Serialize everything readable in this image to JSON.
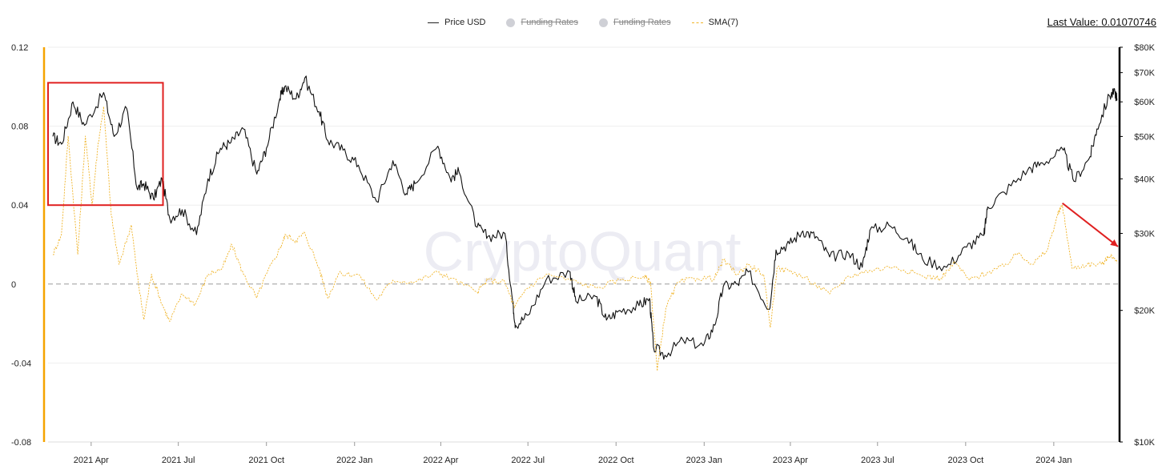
{
  "legend": {
    "items": [
      {
        "label": "Price USD",
        "style": "line",
        "color": "#222222",
        "enabled": true
      },
      {
        "label": "Funding Rates",
        "style": "dot",
        "color": "#cfd0d6",
        "enabled": false
      },
      {
        "label": "Funding Rates",
        "style": "dot",
        "color": "#cfd0d6",
        "enabled": false
      },
      {
        "label": "SMA(7)",
        "style": "dash",
        "color": "#f0b429",
        "enabled": true
      }
    ]
  },
  "last_value": {
    "label": "Last Value:",
    "value": "0.01070746"
  },
  "watermark": "CryptoQuant",
  "chart_data": {
    "type": "line",
    "x_range": [
      "2021-02-15",
      "2024-03-08"
    ],
    "x_ticks": [
      {
        "date": "2021-04-01",
        "label": "2021 Apr"
      },
      {
        "date": "2021-07-01",
        "label": "2021 Jul"
      },
      {
        "date": "2021-10-01",
        "label": "2021 Oct"
      },
      {
        "date": "2022-01-01",
        "label": "2022 Jan"
      },
      {
        "date": "2022-04-01",
        "label": "2022 Apr"
      },
      {
        "date": "2022-07-01",
        "label": "2022 Jul"
      },
      {
        "date": "2022-10-01",
        "label": "2022 Oct"
      },
      {
        "date": "2023-01-01",
        "label": "2023 Jan"
      },
      {
        "date": "2023-04-01",
        "label": "2023 Apr"
      },
      {
        "date": "2023-07-01",
        "label": "2023 Jul"
      },
      {
        "date": "2023-10-01",
        "label": "2023 Oct"
      },
      {
        "date": "2024-01-01",
        "label": "2024 Jan"
      }
    ],
    "y_left": {
      "range": [
        -0.08,
        0.12
      ],
      "ticks": [
        0.12,
        0.08,
        0.04,
        0,
        -0.04,
        -0.08
      ],
      "labels": [
        "0.12",
        "0.08",
        "0.04",
        "0",
        "-0.04",
        "-0.08"
      ]
    },
    "y_right": {
      "scale": "log",
      "range": [
        10000,
        80000
      ],
      "ticks": [
        80000,
        70000,
        60000,
        50000,
        40000,
        30000,
        20000,
        10000
      ],
      "labels": [
        "$80K",
        "$70K",
        "$60K",
        "$50K",
        "$40K",
        "$30K",
        "$20K",
        "$10K"
      ]
    },
    "zero_line": true,
    "series": [
      {
        "name": "Price USD",
        "axis": "right",
        "color": "#111111",
        "style": "solid",
        "points": [
          [
            "2021-02-20",
            50000
          ],
          [
            "2021-03-01",
            48000
          ],
          [
            "2021-03-13",
            60000
          ],
          [
            "2021-03-25",
            53000
          ],
          [
            "2021-04-14",
            63000
          ],
          [
            "2021-04-25",
            50000
          ],
          [
            "2021-05-08",
            58000
          ],
          [
            "2021-05-19",
            38000
          ],
          [
            "2021-05-26",
            39000
          ],
          [
            "2021-06-05",
            36000
          ],
          [
            "2021-06-14",
            40000
          ],
          [
            "2021-06-22",
            32500
          ],
          [
            "2021-07-05",
            34000
          ],
          [
            "2021-07-20",
            29800
          ],
          [
            "2021-08-01",
            40000
          ],
          [
            "2021-08-14",
            47000
          ],
          [
            "2021-08-25",
            48500
          ],
          [
            "2021-09-07",
            52000
          ],
          [
            "2021-09-21",
            41000
          ],
          [
            "2021-10-01",
            47000
          ],
          [
            "2021-10-15",
            61000
          ],
          [
            "2021-10-20",
            65000
          ],
          [
            "2021-11-01",
            61000
          ],
          [
            "2021-11-10",
            68000
          ],
          [
            "2021-11-25",
            57000
          ],
          [
            "2021-12-04",
            49000
          ],
          [
            "2021-12-20",
            46500
          ],
          [
            "2022-01-05",
            43000
          ],
          [
            "2022-01-24",
            35500
          ],
          [
            "2022-02-10",
            44000
          ],
          [
            "2022-02-24",
            37000
          ],
          [
            "2022-03-05",
            39000
          ],
          [
            "2022-03-29",
            47500
          ],
          [
            "2022-04-11",
            40000
          ],
          [
            "2022-04-20",
            41500
          ],
          [
            "2022-05-09",
            31000
          ],
          [
            "2022-05-20",
            29500
          ],
          [
            "2022-06-07",
            30000
          ],
          [
            "2022-06-15",
            21000
          ],
          [
            "2022-06-18",
            18500
          ],
          [
            "2022-07-01",
            19500
          ],
          [
            "2022-07-20",
            23500
          ],
          [
            "2022-08-14",
            24500
          ],
          [
            "2022-08-20",
            21000
          ],
          [
            "2022-09-10",
            21500
          ],
          [
            "2022-09-21",
            19000
          ],
          [
            "2022-10-05",
            20000
          ],
          [
            "2022-10-25",
            20500
          ],
          [
            "2022-11-05",
            21300
          ],
          [
            "2022-11-09",
            16500
          ],
          [
            "2022-11-21",
            15800
          ],
          [
            "2022-12-10",
            17100
          ],
          [
            "2022-12-31",
            16600
          ],
          [
            "2023-01-12",
            18500
          ],
          [
            "2023-01-21",
            22700
          ],
          [
            "2023-02-05",
            23000
          ],
          [
            "2023-02-16",
            24500
          ],
          [
            "2023-03-10",
            20100
          ],
          [
            "2023-03-17",
            27500
          ],
          [
            "2023-03-31",
            28400
          ],
          [
            "2023-04-14",
            30400
          ],
          [
            "2023-04-28",
            29500
          ],
          [
            "2023-05-12",
            26500
          ],
          [
            "2023-06-01",
            27000
          ],
          [
            "2023-06-15",
            25100
          ],
          [
            "2023-06-23",
            30500
          ],
          [
            "2023-07-13",
            31300
          ],
          [
            "2023-08-01",
            29300
          ],
          [
            "2023-08-17",
            26200
          ],
          [
            "2023-09-11",
            25100
          ],
          [
            "2023-10-02",
            27900
          ],
          [
            "2023-10-20",
            29700
          ],
          [
            "2023-10-24",
            34500
          ],
          [
            "2023-11-10",
            37300
          ],
          [
            "2023-12-05",
            42000
          ],
          [
            "2023-12-20",
            43500
          ],
          [
            "2024-01-11",
            46500
          ],
          [
            "2024-01-22",
            39500
          ],
          [
            "2024-02-08",
            45000
          ],
          [
            "2024-02-15",
            52000
          ],
          [
            "2024-02-28",
            62000
          ],
          [
            "2024-03-05",
            63000
          ],
          [
            "2024-03-07",
            61000
          ]
        ]
      },
      {
        "name": "SMA(7)",
        "axis": "left",
        "color": "#f0b429",
        "style": "dashed",
        "points": [
          [
            "2021-02-20",
            0.015
          ],
          [
            "2021-03-01",
            0.025
          ],
          [
            "2021-03-08",
            0.075
          ],
          [
            "2021-03-18",
            0.015
          ],
          [
            "2021-03-26",
            0.075
          ],
          [
            "2021-04-02",
            0.04
          ],
          [
            "2021-04-08",
            0.07
          ],
          [
            "2021-04-14",
            0.09
          ],
          [
            "2021-04-22",
            0.035
          ],
          [
            "2021-04-30",
            0.01
          ],
          [
            "2021-05-13",
            0.03
          ],
          [
            "2021-05-19",
            0.005
          ],
          [
            "2021-05-26",
            -0.018
          ],
          [
            "2021-06-03",
            0.005
          ],
          [
            "2021-06-14",
            -0.01
          ],
          [
            "2021-06-22",
            -0.019
          ],
          [
            "2021-07-05",
            -0.005
          ],
          [
            "2021-07-19",
            -0.01
          ],
          [
            "2021-08-01",
            0.005
          ],
          [
            "2021-08-16",
            0.008
          ],
          [
            "2021-08-26",
            0.02
          ],
          [
            "2021-09-07",
            0.005
          ],
          [
            "2021-09-21",
            -0.007
          ],
          [
            "2021-10-01",
            0.005
          ],
          [
            "2021-10-15",
            0.018
          ],
          [
            "2021-10-21",
            0.025
          ],
          [
            "2021-11-01",
            0.022
          ],
          [
            "2021-11-10",
            0.026
          ],
          [
            "2021-11-25",
            0.008
          ],
          [
            "2021-12-04",
            -0.007
          ],
          [
            "2021-12-15",
            0.005
          ],
          [
            "2022-01-05",
            0.005
          ],
          [
            "2022-01-24",
            -0.008
          ],
          [
            "2022-02-10",
            0.002
          ],
          [
            "2022-03-05",
            0.001
          ],
          [
            "2022-03-29",
            0.006
          ],
          [
            "2022-04-11",
            0.003
          ],
          [
            "2022-05-09",
            -0.004
          ],
          [
            "2022-05-20",
            0.002
          ],
          [
            "2022-06-07",
            0.001
          ],
          [
            "2022-06-17",
            -0.012
          ],
          [
            "2022-06-28",
            -0.003
          ],
          [
            "2022-07-20",
            0.005
          ],
          [
            "2022-08-14",
            0.002
          ],
          [
            "2022-09-10",
            -0.002
          ],
          [
            "2022-10-05",
            0.002
          ],
          [
            "2022-10-30",
            0.004
          ],
          [
            "2022-11-06",
            0.001
          ],
          [
            "2022-11-13",
            -0.044
          ],
          [
            "2022-11-22",
            -0.012
          ],
          [
            "2022-12-05",
            0.001
          ],
          [
            "2022-12-25",
            0.003
          ],
          [
            "2023-01-12",
            0.003
          ],
          [
            "2023-01-21",
            0.012
          ],
          [
            "2023-02-05",
            0.005
          ],
          [
            "2023-02-16",
            0.01
          ],
          [
            "2023-03-04",
            0.005
          ],
          [
            "2023-03-11",
            -0.022
          ],
          [
            "2023-03-18",
            0.008
          ],
          [
            "2023-04-05",
            0.006
          ],
          [
            "2023-04-20",
            0.002
          ],
          [
            "2023-05-12",
            -0.005
          ],
          [
            "2023-06-01",
            0.004
          ],
          [
            "2023-06-23",
            0.007
          ],
          [
            "2023-07-20",
            0.009
          ],
          [
            "2023-08-17",
            0.004
          ],
          [
            "2023-09-05",
            0.003
          ],
          [
            "2023-09-20",
            0.011
          ],
          [
            "2023-10-05",
            0.002
          ],
          [
            "2023-10-24",
            0.006
          ],
          [
            "2023-11-10",
            0.009
          ],
          [
            "2023-11-25",
            0.016
          ],
          [
            "2023-12-10",
            0.01
          ],
          [
            "2023-12-25",
            0.017
          ],
          [
            "2024-01-05",
            0.035
          ],
          [
            "2024-01-10",
            0.04
          ],
          [
            "2024-01-20",
            0.008
          ],
          [
            "2024-02-05",
            0.01
          ],
          [
            "2024-02-20",
            0.01
          ],
          [
            "2024-03-01",
            0.015
          ],
          [
            "2024-03-07",
            0.0107
          ]
        ]
      }
    ],
    "annotations": [
      {
        "type": "rect",
        "color": "#e02020",
        "from": {
          "date": "2021-02-15",
          "value": 0.102
        },
        "to": {
          "date": "2021-06-15",
          "value": 0.04
        }
      },
      {
        "type": "arrow",
        "color": "#e02020",
        "from": {
          "date": "2024-01-10",
          "value": 0.041
        },
        "to": {
          "date": "2024-03-08",
          "value": 0.019
        }
      }
    ]
  }
}
